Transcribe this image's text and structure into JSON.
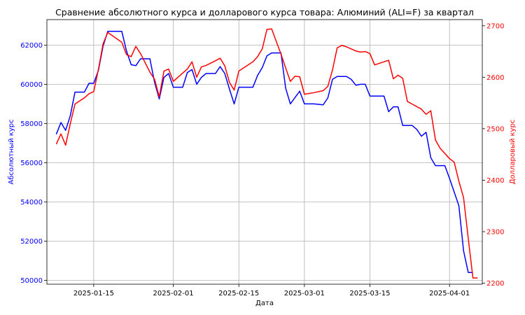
{
  "chart_data": {
    "type": "line",
    "title": "Сравнение абсолютного курса и долларового курса товара: Алюминий (ALI=F) за квартал",
    "xlabel": "Дата",
    "ylabel_left": "Абсолютный курс",
    "ylabel_right": "Долларовый курс",
    "x_tick_labels": [
      "2025-01-15",
      "2025-02-01",
      "2025-02-15",
      "2025-03-01",
      "2025-03-15",
      "2025-04-01"
    ],
    "y_left_ticks": [
      50000,
      52000,
      54000,
      56000,
      58000,
      60000,
      62000
    ],
    "y_left_tick_labels": [
      "50000",
      "52000",
      "54000",
      "56000",
      "58000",
      "60000",
      "62000"
    ],
    "y_right_ticks": [
      2200,
      2300,
      2400,
      2500,
      2600,
      2700
    ],
    "y_right_tick_labels": [
      "2200",
      "2300",
      "2400",
      "2500",
      "2600",
      "2700"
    ],
    "x_range": [
      "2025-01-05",
      "2025-04-08"
    ],
    "y_left_range": [
      49800,
      63300
    ],
    "y_right_range": [
      2198,
      2712
    ],
    "grid": true,
    "series": [
      {
        "axis": "left",
        "color": "#0000ff",
        "points": [
          [
            "2025-01-07",
            57450
          ],
          [
            "2025-01-08",
            58050
          ],
          [
            "2025-01-09",
            57650
          ],
          [
            "2025-01-10",
            58400
          ],
          [
            "2025-01-11",
            59600
          ],
          [
            "2025-01-13",
            59600
          ],
          [
            "2025-01-14",
            60050
          ],
          [
            "2025-01-15",
            60050
          ],
          [
            "2025-01-16",
            60700
          ],
          [
            "2025-01-17",
            61950
          ],
          [
            "2025-01-18",
            62700
          ],
          [
            "2025-01-21",
            62700
          ],
          [
            "2025-01-22",
            61700
          ],
          [
            "2025-01-23",
            61000
          ],
          [
            "2025-01-24",
            60950
          ],
          [
            "2025-01-25",
            61300
          ],
          [
            "2025-01-27",
            61300
          ],
          [
            "2025-01-28",
            60100
          ],
          [
            "2025-01-29",
            59250
          ],
          [
            "2025-01-30",
            60350
          ],
          [
            "2025-01-31",
            60550
          ],
          [
            "2025-02-01",
            59850
          ],
          [
            "2025-02-03",
            59850
          ],
          [
            "2025-02-04",
            60600
          ],
          [
            "2025-02-05",
            60750
          ],
          [
            "2025-02-06",
            60000
          ],
          [
            "2025-02-07",
            60350
          ],
          [
            "2025-02-08",
            60550
          ],
          [
            "2025-02-10",
            60550
          ],
          [
            "2025-02-11",
            60900
          ],
          [
            "2025-02-12",
            60550
          ],
          [
            "2025-02-13",
            59750
          ],
          [
            "2025-02-14",
            59000
          ],
          [
            "2025-02-15",
            59850
          ],
          [
            "2025-02-18",
            59850
          ],
          [
            "2025-02-19",
            60450
          ],
          [
            "2025-02-20",
            60850
          ],
          [
            "2025-02-21",
            61450
          ],
          [
            "2025-02-22",
            61600
          ],
          [
            "2025-02-24",
            61600
          ],
          [
            "2025-02-25",
            59800
          ],
          [
            "2025-02-26",
            59000
          ],
          [
            "2025-02-28",
            59650
          ],
          [
            "2025-03-01",
            59000
          ],
          [
            "2025-03-03",
            59000
          ],
          [
            "2025-03-05",
            58950
          ],
          [
            "2025-03-06",
            59300
          ],
          [
            "2025-03-07",
            60250
          ],
          [
            "2025-03-08",
            60400
          ],
          [
            "2025-03-10",
            60400
          ],
          [
            "2025-03-11",
            60250
          ],
          [
            "2025-03-12",
            59950
          ],
          [
            "2025-03-13",
            60000
          ],
          [
            "2025-03-14",
            60000
          ],
          [
            "2025-03-15",
            59400
          ],
          [
            "2025-03-18",
            59400
          ],
          [
            "2025-03-19",
            58600
          ],
          [
            "2025-03-20",
            58850
          ],
          [
            "2025-03-21",
            58850
          ],
          [
            "2025-03-22",
            57900
          ],
          [
            "2025-03-24",
            57900
          ],
          [
            "2025-03-25",
            57700
          ],
          [
            "2025-03-26",
            57350
          ],
          [
            "2025-03-27",
            57550
          ],
          [
            "2025-03-28",
            56250
          ],
          [
            "2025-03-29",
            55850
          ],
          [
            "2025-03-31",
            55850
          ],
          [
            "2025-04-01",
            55200
          ],
          [
            "2025-04-02",
            54500
          ],
          [
            "2025-04-03",
            53800
          ],
          [
            "2025-04-04",
            51500
          ],
          [
            "2025-04-05",
            50400
          ],
          [
            "2025-04-06",
            50400
          ]
        ]
      },
      {
        "axis": "right",
        "color": "#ff0000",
        "points": [
          [
            "2025-01-07",
            2470
          ],
          [
            "2025-01-08",
            2490
          ],
          [
            "2025-01-09",
            2468
          ],
          [
            "2025-01-10",
            2510
          ],
          [
            "2025-01-11",
            2548
          ],
          [
            "2025-01-13",
            2560
          ],
          [
            "2025-01-14",
            2568
          ],
          [
            "2025-01-15",
            2572
          ],
          [
            "2025-01-16",
            2615
          ],
          [
            "2025-01-17",
            2665
          ],
          [
            "2025-01-18",
            2687
          ],
          [
            "2025-01-21",
            2668
          ],
          [
            "2025-01-22",
            2644
          ],
          [
            "2025-01-23",
            2640
          ],
          [
            "2025-01-24",
            2660
          ],
          [
            "2025-01-25",
            2646
          ],
          [
            "2025-01-27",
            2610
          ],
          [
            "2025-01-28",
            2596
          ],
          [
            "2025-01-29",
            2562
          ],
          [
            "2025-01-30",
            2612
          ],
          [
            "2025-01-31",
            2616
          ],
          [
            "2025-02-01",
            2592
          ],
          [
            "2025-02-03",
            2608
          ],
          [
            "2025-02-04",
            2616
          ],
          [
            "2025-02-05",
            2630
          ],
          [
            "2025-02-06",
            2600
          ],
          [
            "2025-02-07",
            2620
          ],
          [
            "2025-02-08",
            2623
          ],
          [
            "2025-02-10",
            2632
          ],
          [
            "2025-02-11",
            2637
          ],
          [
            "2025-02-12",
            2622
          ],
          [
            "2025-02-13",
            2590
          ],
          [
            "2025-02-14",
            2575
          ],
          [
            "2025-02-15",
            2612
          ],
          [
            "2025-02-18",
            2630
          ],
          [
            "2025-02-19",
            2640
          ],
          [
            "2025-02-20",
            2655
          ],
          [
            "2025-02-21",
            2693
          ],
          [
            "2025-02-22",
            2694
          ],
          [
            "2025-02-24",
            2645
          ],
          [
            "2025-02-25",
            2618
          ],
          [
            "2025-02-26",
            2592
          ],
          [
            "2025-02-27",
            2602
          ],
          [
            "2025-02-28",
            2601
          ],
          [
            "2025-03-01",
            2567
          ],
          [
            "2025-03-03",
            2570
          ],
          [
            "2025-03-05",
            2574
          ],
          [
            "2025-03-06",
            2582
          ],
          [
            "2025-03-07",
            2614
          ],
          [
            "2025-03-08",
            2657
          ],
          [
            "2025-03-09",
            2662
          ],
          [
            "2025-03-10",
            2659
          ],
          [
            "2025-03-12",
            2651
          ],
          [
            "2025-03-13",
            2649
          ],
          [
            "2025-03-14",
            2650
          ],
          [
            "2025-03-15",
            2646
          ],
          [
            "2025-03-16",
            2624
          ],
          [
            "2025-03-18",
            2630
          ],
          [
            "2025-03-19",
            2633
          ],
          [
            "2025-03-20",
            2597
          ],
          [
            "2025-03-21",
            2604
          ],
          [
            "2025-03-22",
            2598
          ],
          [
            "2025-03-23",
            2553
          ],
          [
            "2025-03-24",
            2548
          ],
          [
            "2025-03-26",
            2538
          ],
          [
            "2025-03-27",
            2528
          ],
          [
            "2025-03-28",
            2535
          ],
          [
            "2025-03-29",
            2478
          ],
          [
            "2025-03-30",
            2462
          ],
          [
            "2025-04-01",
            2442
          ],
          [
            "2025-04-02",
            2435
          ],
          [
            "2025-04-03",
            2398
          ],
          [
            "2025-04-04",
            2366
          ],
          [
            "2025-04-05",
            2287
          ],
          [
            "2025-04-06",
            2210
          ],
          [
            "2025-04-07",
            2210
          ]
        ]
      }
    ]
  }
}
